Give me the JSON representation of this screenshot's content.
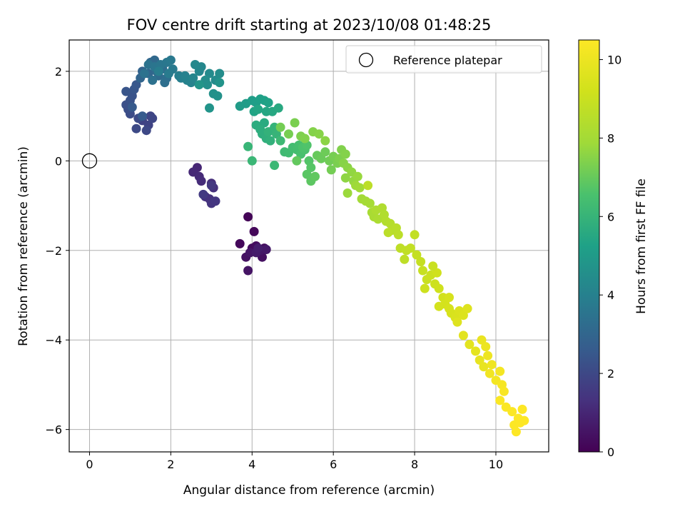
{
  "chart_data": {
    "type": "scatter",
    "title": "FOV centre drift starting at 2023/10/08 01:48:25",
    "xlabel": "Angular distance from reference (arcmin)",
    "ylabel": "Rotation from reference (arcmin)",
    "xlim": [
      -0.5,
      11.3
    ],
    "ylim": [
      -6.5,
      2.7
    ],
    "xticks": [
      0,
      2,
      4,
      6,
      8,
      10
    ],
    "yticks": [
      -6,
      -4,
      -2,
      0,
      2
    ],
    "xtick_labels": [
      "0",
      "2",
      "4",
      "6",
      "8",
      "10"
    ],
    "ytick_labels": [
      "−6",
      "−4",
      "−2",
      "0",
      "2"
    ],
    "grid": true,
    "legend": {
      "placement": "top-right",
      "entries": [
        "Reference platepar"
      ]
    },
    "reference_point": {
      "x": 0,
      "y": 0,
      "label": "Reference platepar"
    },
    "colorbar": {
      "label": "Hours from first FF file",
      "min": 0,
      "max": 10.5,
      "ticks": [
        0,
        2,
        4,
        6,
        8,
        10
      ],
      "tick_labels": [
        "0",
        "2",
        "4",
        "6",
        "8",
        "10"
      ],
      "colormap": "viridis"
    },
    "points": [
      [
        3.9,
        -1.25,
        0.1
      ],
      [
        4.05,
        -1.58,
        0.15
      ],
      [
        3.7,
        -1.85,
        0.2
      ],
      [
        4.0,
        -1.95,
        0.25
      ],
      [
        4.1,
        -1.9,
        0.3
      ],
      [
        4.3,
        -1.95,
        0.35
      ],
      [
        4.25,
        -2.15,
        0.4
      ],
      [
        3.85,
        -2.15,
        0.45
      ],
      [
        3.9,
        -2.45,
        0.5
      ],
      [
        3.95,
        -2.05,
        0.55
      ],
      [
        4.2,
        -2.0,
        0.6
      ],
      [
        4.35,
        -1.98,
        0.65
      ],
      [
        4.1,
        -2.05,
        0.7
      ],
      [
        4.15,
        -1.95,
        0.75
      ],
      [
        2.65,
        -0.15,
        1.0
      ],
      [
        2.55,
        -0.25,
        1.05
      ],
      [
        2.7,
        -0.35,
        1.1
      ],
      [
        2.75,
        -0.45,
        1.15
      ],
      [
        3.0,
        -0.5,
        1.2
      ],
      [
        3.05,
        -0.6,
        1.25
      ],
      [
        2.85,
        -0.8,
        1.3
      ],
      [
        2.95,
        -0.85,
        1.35
      ],
      [
        3.0,
        -0.95,
        1.4
      ],
      [
        3.1,
        -0.9,
        1.45
      ],
      [
        3.0,
        -0.55,
        1.5
      ],
      [
        2.8,
        -0.75,
        1.55
      ],
      [
        1.3,
        0.9,
        1.8
      ],
      [
        1.45,
        0.8,
        1.85
      ],
      [
        1.5,
        1.0,
        1.9
      ],
      [
        1.55,
        0.95,
        1.95
      ],
      [
        1.4,
        0.68,
        2.0
      ],
      [
        1.15,
        0.72,
        2.05
      ],
      [
        1.2,
        0.95,
        2.1
      ],
      [
        1.0,
        1.05,
        2.15
      ],
      [
        0.95,
        1.15,
        2.2
      ],
      [
        0.9,
        1.25,
        2.25
      ],
      [
        1.0,
        1.35,
        2.3
      ],
      [
        1.05,
        1.45,
        2.35
      ],
      [
        0.9,
        1.55,
        2.4
      ],
      [
        1.1,
        1.6,
        2.45
      ],
      [
        1.15,
        1.7,
        2.5
      ],
      [
        1.05,
        1.2,
        2.55
      ],
      [
        1.3,
        1.0,
        2.6
      ],
      [
        1.3,
        2.0,
        2.9
      ],
      [
        1.25,
        1.85,
        2.95
      ],
      [
        1.45,
        1.95,
        3.0
      ],
      [
        1.5,
        2.2,
        3.05
      ],
      [
        1.6,
        2.25,
        3.1
      ],
      [
        1.65,
        2.0,
        3.15
      ],
      [
        1.7,
        1.9,
        3.2
      ],
      [
        1.8,
        2.05,
        3.25
      ],
      [
        1.9,
        1.85,
        3.3
      ],
      [
        1.85,
        1.75,
        3.35
      ],
      [
        1.55,
        1.8,
        3.4
      ],
      [
        1.35,
        1.95,
        3.45
      ],
      [
        1.45,
        2.15,
        3.5
      ],
      [
        1.6,
        2.1,
        3.55
      ],
      [
        1.75,
        2.15,
        3.6
      ],
      [
        1.9,
        2.2,
        3.65
      ],
      [
        2.0,
        2.25,
        3.7
      ],
      [
        2.05,
        2.05,
        3.75
      ],
      [
        1.95,
        1.95,
        3.8
      ],
      [
        1.7,
        2.0,
        3.85
      ],
      [
        2.2,
        1.9,
        3.9
      ],
      [
        2.25,
        1.85,
        3.95
      ],
      [
        2.35,
        1.9,
        4.0
      ],
      [
        2.4,
        1.8,
        4.05
      ],
      [
        2.5,
        1.75,
        4.1
      ],
      [
        2.55,
        1.85,
        4.15
      ],
      [
        2.7,
        2.0,
        4.2
      ],
      [
        2.75,
        2.1,
        4.25
      ],
      [
        2.6,
        2.15,
        4.3
      ],
      [
        2.95,
        1.95,
        4.35
      ],
      [
        3.1,
        1.8,
        4.4
      ],
      [
        3.2,
        1.95,
        4.45
      ],
      [
        2.85,
        1.8,
        4.5
      ],
      [
        2.9,
        1.7,
        4.55
      ],
      [
        3.05,
        1.5,
        4.6
      ],
      [
        3.15,
        1.45,
        4.65
      ],
      [
        3.2,
        1.75,
        4.7
      ],
      [
        2.95,
        1.18,
        4.75
      ],
      [
        2.7,
        1.7,
        4.8
      ],
      [
        3.7,
        1.22,
        5.0
      ],
      [
        3.85,
        1.28,
        5.05
      ],
      [
        4.0,
        1.35,
        5.1
      ],
      [
        4.1,
        1.3,
        5.15
      ],
      [
        4.2,
        1.38,
        5.2
      ],
      [
        4.3,
        1.35,
        5.25
      ],
      [
        4.4,
        1.3,
        5.3
      ],
      [
        4.05,
        1.1,
        5.35
      ],
      [
        4.15,
        1.15,
        5.4
      ],
      [
        4.35,
        1.1,
        5.45
      ],
      [
        4.5,
        1.1,
        5.5
      ],
      [
        4.65,
        1.18,
        5.55
      ],
      [
        4.3,
        0.85,
        5.6
      ],
      [
        4.1,
        0.8,
        5.65
      ],
      [
        4.2,
        0.7,
        5.7
      ],
      [
        4.25,
        0.6,
        5.75
      ],
      [
        4.35,
        0.5,
        5.8
      ],
      [
        4.45,
        0.45,
        5.85
      ],
      [
        4.4,
        0.65,
        5.9
      ],
      [
        4.55,
        0.75,
        5.95
      ],
      [
        4.6,
        0.6,
        6.0
      ],
      [
        3.9,
        0.32,
        6.05
      ],
      [
        4.0,
        0.0,
        6.1
      ],
      [
        4.55,
        -0.1,
        6.15
      ],
      [
        4.7,
        0.45,
        6.2
      ],
      [
        4.8,
        0.2,
        6.25
      ],
      [
        4.9,
        0.18,
        6.3
      ],
      [
        5.0,
        0.3,
        6.35
      ],
      [
        5.1,
        0.25,
        6.4
      ],
      [
        5.15,
        0.35,
        6.45
      ],
      [
        5.2,
        0.15,
        6.5
      ],
      [
        5.3,
        0.25,
        6.55
      ],
      [
        5.25,
        0.3,
        6.6
      ],
      [
        5.35,
        0.35,
        6.65
      ],
      [
        5.4,
        0.0,
        6.7
      ],
      [
        5.45,
        -0.15,
        6.75
      ],
      [
        5.35,
        -0.3,
        6.8
      ],
      [
        5.45,
        -0.45,
        6.85
      ],
      [
        5.55,
        -0.35,
        6.9
      ],
      [
        5.1,
        0.0,
        6.95
      ],
      [
        5.6,
        0.12,
        7.0
      ],
      [
        5.7,
        0.05,
        7.05
      ],
      [
        5.8,
        0.2,
        7.1
      ],
      [
        5.9,
        0.0,
        7.15
      ],
      [
        5.95,
        -0.2,
        7.2
      ],
      [
        6.0,
        0.1,
        7.25
      ],
      [
        6.1,
        -0.05,
        7.3
      ],
      [
        6.15,
        0.05,
        7.35
      ],
      [
        6.2,
        0.25,
        7.4
      ],
      [
        6.3,
        0.15,
        7.45
      ],
      [
        6.25,
        -0.05,
        7.5
      ],
      [
        6.35,
        -0.15,
        7.55
      ],
      [
        6.3,
        -0.38,
        7.6
      ],
      [
        6.45,
        -0.25,
        7.65
      ],
      [
        6.5,
        -0.45,
        7.7
      ],
      [
        6.6,
        -0.35,
        7.75
      ],
      [
        6.35,
        -0.72,
        7.8
      ],
      [
        6.55,
        -0.55,
        7.85
      ],
      [
        4.7,
        0.75,
        7.2
      ],
      [
        4.9,
        0.6,
        7.25
      ],
      [
        5.05,
        0.85,
        7.3
      ],
      [
        5.2,
        0.55,
        7.35
      ],
      [
        5.3,
        0.5,
        7.4
      ],
      [
        5.5,
        0.65,
        7.45
      ],
      [
        5.65,
        0.6,
        7.5
      ],
      [
        5.8,
        0.45,
        7.55
      ],
      [
        6.65,
        -0.6,
        7.9
      ],
      [
        6.7,
        -0.85,
        7.95
      ],
      [
        6.8,
        -0.9,
        8.0
      ],
      [
        6.9,
        -0.95,
        8.05
      ],
      [
        6.95,
        -1.15,
        8.1
      ],
      [
        7.0,
        -1.25,
        8.15
      ],
      [
        7.1,
        -1.3,
        8.2
      ],
      [
        7.05,
        -1.1,
        8.25
      ],
      [
        7.2,
        -1.05,
        8.3
      ],
      [
        7.25,
        -1.2,
        8.35
      ],
      [
        7.3,
        -1.35,
        8.4
      ],
      [
        7.4,
        -1.4,
        8.45
      ],
      [
        7.45,
        -1.55,
        8.5
      ],
      [
        7.55,
        -1.5,
        8.55
      ],
      [
        7.6,
        -1.65,
        8.6
      ],
      [
        6.85,
        -0.55,
        8.65
      ],
      [
        7.65,
        -1.95,
        8.7
      ],
      [
        7.8,
        -2.0,
        8.75
      ],
      [
        7.9,
        -1.95,
        8.8
      ],
      [
        8.05,
        -2.1,
        8.85
      ],
      [
        8.15,
        -2.25,
        8.9
      ],
      [
        8.2,
        -2.45,
        8.95
      ],
      [
        8.3,
        -2.65,
        9.0
      ],
      [
        8.4,
        -2.55,
        9.05
      ],
      [
        8.5,
        -2.75,
        9.1
      ],
      [
        8.6,
        -2.85,
        9.15
      ],
      [
        8.55,
        -2.5,
        9.2
      ],
      [
        8.7,
        -3.05,
        9.25
      ],
      [
        8.75,
        -3.2,
        9.3
      ],
      [
        8.85,
        -3.3,
        9.35
      ],
      [
        8.9,
        -3.4,
        9.4
      ],
      [
        9.0,
        -3.5,
        9.45
      ],
      [
        9.1,
        -3.35,
        9.5
      ],
      [
        9.2,
        -3.45,
        9.55
      ],
      [
        9.05,
        -3.6,
        9.6
      ],
      [
        7.35,
        -1.6,
        8.6
      ],
      [
        7.75,
        -2.2,
        8.7
      ],
      [
        8.0,
        -1.65,
        8.8
      ],
      [
        8.45,
        -2.35,
        9.0
      ],
      [
        8.25,
        -2.85,
        9.1
      ],
      [
        8.6,
        -3.25,
        9.3
      ],
      [
        8.85,
        -3.05,
        9.35
      ],
      [
        9.3,
        -3.3,
        9.6
      ],
      [
        9.2,
        -3.9,
        9.7
      ],
      [
        9.35,
        -4.1,
        9.75
      ],
      [
        9.5,
        -4.25,
        9.8
      ],
      [
        9.6,
        -4.45,
        9.85
      ],
      [
        9.7,
        -4.6,
        9.9
      ],
      [
        9.65,
        -4.0,
        9.95
      ],
      [
        9.75,
        -4.15,
        10.0
      ],
      [
        9.8,
        -4.35,
        10.05
      ],
      [
        9.9,
        -4.55,
        10.1
      ],
      [
        9.85,
        -4.75,
        10.15
      ],
      [
        10.0,
        -4.9,
        10.2
      ],
      [
        10.1,
        -4.7,
        10.25
      ],
      [
        10.15,
        -5.0,
        10.3
      ],
      [
        10.2,
        -5.15,
        10.35
      ],
      [
        10.1,
        -5.35,
        10.4
      ],
      [
        10.25,
        -5.5,
        10.42
      ],
      [
        10.4,
        -5.6,
        10.45
      ],
      [
        10.55,
        -5.75,
        10.47
      ],
      [
        10.45,
        -5.9,
        10.48
      ],
      [
        10.6,
        -5.85,
        10.5
      ],
      [
        10.5,
        -6.05,
        10.5
      ],
      [
        10.65,
        -5.55,
        10.5
      ],
      [
        10.7,
        -5.8,
        10.5
      ]
    ]
  }
}
